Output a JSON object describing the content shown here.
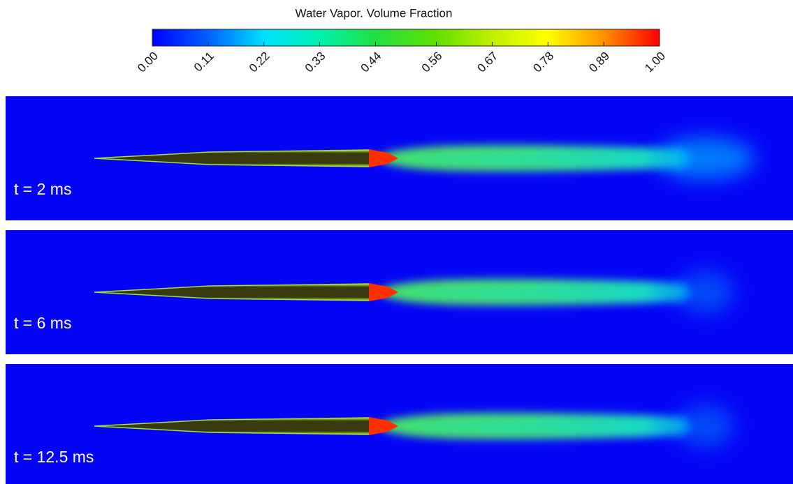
{
  "colorbar": {
    "title": "Water Vapor. Volume Fraction",
    "range": [
      0,
      1
    ],
    "ticks": [
      {
        "value": 0,
        "label": "0.00"
      },
      0.11,
      0.22,
      0.33,
      0.44,
      0.56,
      0.67,
      0.78,
      0.89,
      {
        "value": 1,
        "label": "1.00"
      }
    ]
  },
  "panels": [
    {
      "label": "t = 2 ms"
    },
    {
      "label": "t = 6 ms"
    },
    {
      "label": "t = 12.5 ms"
    }
  ]
}
